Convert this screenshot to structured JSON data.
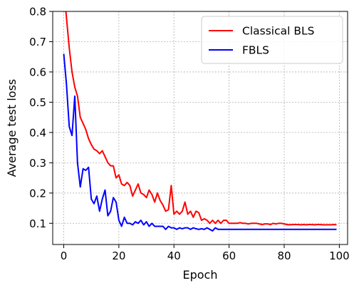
{
  "chart_data": {
    "type": "line",
    "title": "",
    "xlabel": "Epoch",
    "ylabel": "Average test loss",
    "xlim": [
      -4,
      103
    ],
    "ylim": [
      0.03,
      0.8
    ],
    "xticks": [
      0,
      20,
      40,
      60,
      80,
      100
    ],
    "yticks": [
      0.1,
      0.2,
      0.3,
      0.4,
      0.5,
      0.6,
      0.7,
      0.8
    ],
    "ytick_labels": [
      "0.1",
      "0.2",
      "0.3",
      "0.4",
      "0.5",
      "0.6",
      "0.7",
      "0.8"
    ],
    "grid": true,
    "legend_position": "top-right",
    "series": [
      {
        "name": "Classical BLS",
        "color": "#ff0000",
        "x": [
          0,
          1,
          2,
          3,
          4,
          5,
          6,
          7,
          8,
          9,
          10,
          11,
          12,
          13,
          14,
          15,
          16,
          17,
          18,
          19,
          20,
          21,
          22,
          23,
          24,
          25,
          26,
          27,
          28,
          29,
          30,
          31,
          32,
          33,
          34,
          35,
          36,
          37,
          38,
          39,
          40,
          41,
          42,
          43,
          44,
          45,
          46,
          47,
          48,
          49,
          50,
          51,
          52,
          53,
          54,
          55,
          56,
          57,
          58,
          59,
          60,
          61,
          62,
          63,
          64,
          65,
          66,
          67,
          68,
          69,
          70,
          71,
          72,
          73,
          74,
          75,
          76,
          77,
          78,
          79,
          80,
          81,
          82,
          83,
          84,
          85,
          86,
          87,
          88,
          89,
          90,
          91,
          92,
          93,
          94,
          95,
          96,
          97,
          98,
          99
        ],
        "y": [
          0.88,
          0.78,
          0.68,
          0.6,
          0.55,
          0.52,
          0.45,
          0.43,
          0.41,
          0.38,
          0.36,
          0.345,
          0.34,
          0.33,
          0.34,
          0.32,
          0.3,
          0.29,
          0.29,
          0.25,
          0.26,
          0.23,
          0.225,
          0.235,
          0.225,
          0.19,
          0.21,
          0.23,
          0.2,
          0.195,
          0.185,
          0.21,
          0.195,
          0.17,
          0.2,
          0.175,
          0.16,
          0.14,
          0.145,
          0.225,
          0.13,
          0.14,
          0.13,
          0.14,
          0.17,
          0.13,
          0.14,
          0.12,
          0.14,
          0.135,
          0.11,
          0.115,
          0.11,
          0.1,
          0.11,
          0.1,
          0.11,
          0.1,
          0.11,
          0.11,
          0.1,
          0.1,
          0.1,
          0.1,
          0.102,
          0.1,
          0.1,
          0.098,
          0.1,
          0.1,
          0.1,
          0.098,
          0.096,
          0.098,
          0.098,
          0.096,
          0.1,
          0.098,
          0.1,
          0.1,
          0.098,
          0.096,
          0.095,
          0.096,
          0.096,
          0.096,
          0.095,
          0.096,
          0.095,
          0.096,
          0.096,
          0.095,
          0.096,
          0.096,
          0.095,
          0.095,
          0.095,
          0.095,
          0.096,
          0.095
        ]
      },
      {
        "name": "FBLS",
        "color": "#0000ff",
        "x": [
          0,
          1,
          2,
          3,
          4,
          5,
          6,
          7,
          8,
          9,
          10,
          11,
          12,
          13,
          14,
          15,
          16,
          17,
          18,
          19,
          20,
          21,
          22,
          23,
          24,
          25,
          26,
          27,
          28,
          29,
          30,
          31,
          32,
          33,
          34,
          35,
          36,
          37,
          38,
          39,
          40,
          41,
          42,
          43,
          44,
          45,
          46,
          47,
          48,
          49,
          50,
          51,
          52,
          53,
          54,
          55,
          56,
          57,
          58,
          59,
          60,
          61,
          62,
          63,
          64,
          65,
          66,
          67,
          68,
          69,
          70,
          71,
          72,
          73,
          74,
          75,
          76,
          77,
          78,
          79,
          80,
          81,
          82,
          83,
          84,
          85,
          86,
          87,
          88,
          89,
          90,
          91,
          92,
          93,
          94,
          95,
          96,
          97,
          98,
          99
        ],
        "y": [
          0.66,
          0.56,
          0.42,
          0.39,
          0.52,
          0.3,
          0.22,
          0.28,
          0.275,
          0.285,
          0.18,
          0.165,
          0.19,
          0.14,
          0.18,
          0.21,
          0.125,
          0.14,
          0.185,
          0.17,
          0.11,
          0.09,
          0.12,
          0.1,
          0.1,
          0.095,
          0.105,
          0.1,
          0.11,
          0.095,
          0.105,
          0.09,
          0.1,
          0.09,
          0.09,
          0.09,
          0.09,
          0.08,
          0.09,
          0.085,
          0.085,
          0.08,
          0.085,
          0.082,
          0.085,
          0.085,
          0.08,
          0.085,
          0.082,
          0.08,
          0.082,
          0.08,
          0.085,
          0.08,
          0.075,
          0.085,
          0.08,
          0.08,
          0.08,
          0.08,
          0.08,
          0.08,
          0.08,
          0.08,
          0.08,
          0.08,
          0.08,
          0.08,
          0.08,
          0.08,
          0.08,
          0.08,
          0.08,
          0.08,
          0.08,
          0.08,
          0.08,
          0.08,
          0.08,
          0.08,
          0.08,
          0.08,
          0.08,
          0.08,
          0.08,
          0.08,
          0.08,
          0.08,
          0.08,
          0.08,
          0.08,
          0.08,
          0.08,
          0.08,
          0.08,
          0.08,
          0.08,
          0.08,
          0.08,
          0.08
        ]
      }
    ]
  }
}
